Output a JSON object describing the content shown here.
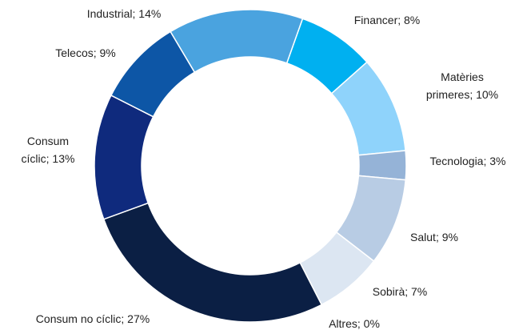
{
  "chart_data": {
    "type": "pie",
    "donut": true,
    "categories": [
      "Financer",
      "Matèries primeres",
      "Tecnologia",
      "Salut",
      "Sobirà",
      "Altres",
      "Consum no cíclic",
      "Consum cíclic",
      "Telecos",
      "Industrial"
    ],
    "values": [
      8,
      10,
      3,
      9,
      7,
      0,
      27,
      13,
      9,
      14
    ],
    "value_labels": [
      "Financer; 8%",
      "Matèries primeres; 10%",
      "Tecnologia; 3%",
      "Salut; 9%",
      "Sobirà; 7%",
      "Altres; 0%",
      "Consum no cíclic; 27%",
      "Consum cíclic; 13%",
      "Telecos; 9%",
      "Industrial; 14%"
    ],
    "colors": [
      "#00b0f0",
      "#8fd3fb",
      "#95b3d7",
      "#b8cce4",
      "#dce6f2",
      "#dce6f2",
      "#0b1f44",
      "#0f2a7d",
      "#0d56a6",
      "#4aa3df"
    ]
  }
}
